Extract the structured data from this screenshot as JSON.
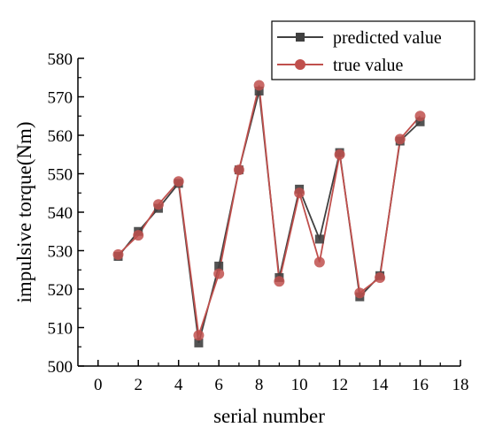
{
  "chart_data": {
    "type": "line",
    "xlabel": "serial number",
    "ylabel": "impulsive torque(Nm)",
    "xlim": [
      -1,
      18
    ],
    "ylim": [
      500,
      580
    ],
    "x_ticks": [
      0,
      2,
      4,
      6,
      8,
      10,
      12,
      14,
      16,
      18
    ],
    "x_tick_labels": [
      "0",
      "2",
      "4",
      "6",
      "8",
      "10",
      "12",
      "14",
      "16",
      "18"
    ],
    "y_ticks": [
      500,
      510,
      520,
      530,
      540,
      550,
      560,
      570,
      580
    ],
    "y_tick_labels": [
      "500",
      "510",
      "520",
      "530",
      "540",
      "550",
      "560",
      "570",
      "580"
    ],
    "grid": false,
    "legend_position": "top-right",
    "x": [
      1,
      2,
      3,
      4,
      5,
      6,
      7,
      8,
      9,
      10,
      11,
      12,
      13,
      14,
      15,
      16
    ],
    "series": [
      {
        "name": "predicted value",
        "color": "#404040",
        "marker": "square",
        "values": [
          528.5,
          535,
          541,
          547.5,
          506,
          526,
          551,
          571.5,
          523,
          546,
          533,
          555.5,
          518,
          523.5,
          558.5,
          563.5
        ]
      },
      {
        "name": "true value",
        "color": "#c0504d",
        "marker": "circle",
        "values": [
          529,
          534,
          542,
          548,
          508,
          524,
          551,
          573,
          522,
          545,
          527,
          555,
          519,
          523,
          559,
          565
        ]
      }
    ]
  }
}
